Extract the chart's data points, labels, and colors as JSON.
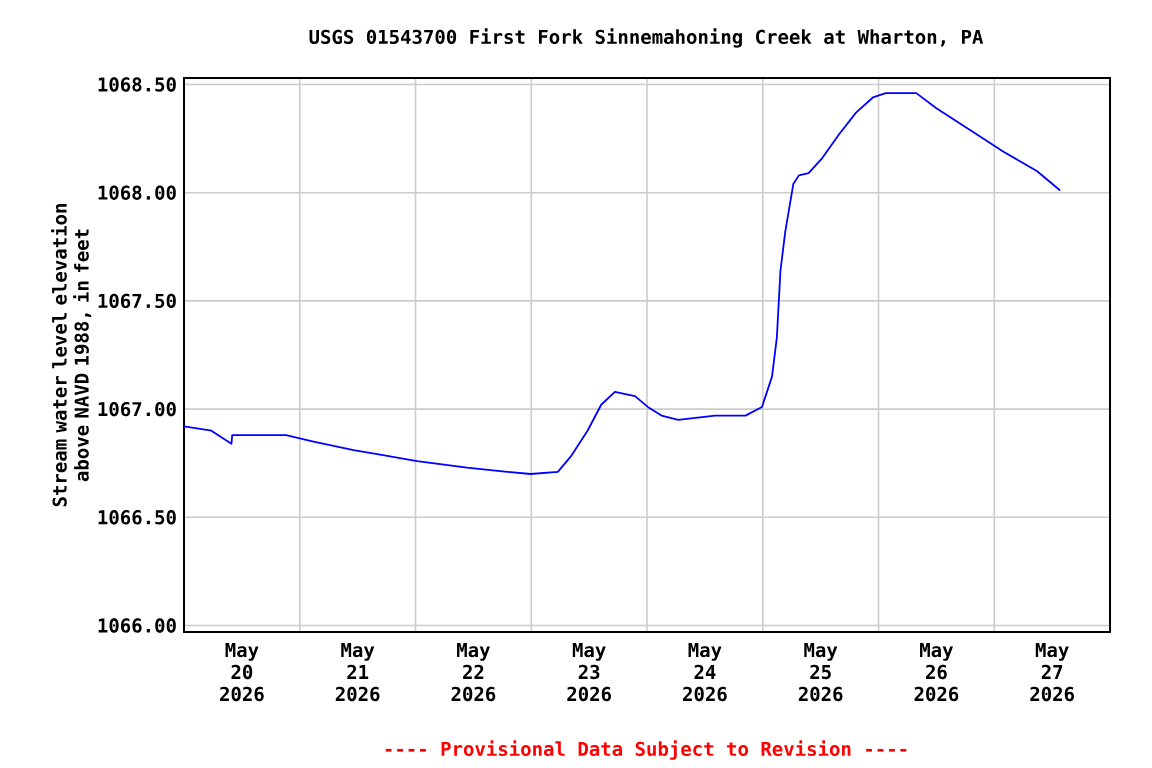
{
  "chart_data": {
    "type": "line",
    "title": "USGS 01543700 First Fork Sinnemahoning Creek at Wharton, PA",
    "ylabel": "Stream water level elevation above NAVD 1988, in feet",
    "annotations": [
      "---- Provisional Data Subject to Revision ----"
    ],
    "xlim": [
      "2026-05-20T00:00",
      "2026-05-28T00:00"
    ],
    "ylim": [
      1065.97,
      1068.53
    ],
    "xticks": [
      {
        "value": "2026-05-21T00:00",
        "label": null
      },
      {
        "value": "2026-05-22T00:00",
        "label": null
      },
      {
        "value": "2026-05-23T00:00",
        "label": null
      },
      {
        "value": "2026-05-24T00:00",
        "label": null
      },
      {
        "value": "2026-05-25T00:00",
        "label": null
      },
      {
        "value": "2026-05-26T00:00",
        "label": null
      },
      {
        "value": "2026-05-27T00:00",
        "label": null
      },
      {
        "value": "2026-05-20T12:00",
        "label": "May 20 2026"
      },
      {
        "value": "2026-05-21T12:00",
        "label": "May 21 2026"
      },
      {
        "value": "2026-05-22T12:00",
        "label": "May 22 2026"
      },
      {
        "value": "2026-05-23T12:00",
        "label": "May 23 2026"
      },
      {
        "value": "2026-05-24T12:00",
        "label": "May 24 2026"
      },
      {
        "value": "2026-05-25T12:00",
        "label": "May 25 2026"
      },
      {
        "value": "2026-05-26T12:00",
        "label": "May 26 2026"
      },
      {
        "value": "2026-05-27T12:00",
        "label": "May 27 2026"
      }
    ],
    "yticks": [
      {
        "value": 1066.0,
        "label": "1066.00"
      },
      {
        "value": 1066.5,
        "label": "1066.50"
      },
      {
        "value": 1067.0,
        "label": "1067.00"
      },
      {
        "value": 1067.5,
        "label": "1067.50"
      },
      {
        "value": 1068.0,
        "label": "1068.00"
      },
      {
        "value": 1068.5,
        "label": "1068.50"
      }
    ],
    "grid": true,
    "series": [
      {
        "color": "#0000ff",
        "x": [
          "2026-05-20T00:00",
          "2026-05-20T05:40",
          "2026-05-20T09:50",
          "2026-05-20T10:00",
          "2026-05-20T21:10",
          "2026-05-21T02:50",
          "2026-05-21T11:10",
          "2026-05-21T16:40",
          "2026-05-22T00:20",
          "2026-05-22T10:40",
          "2026-05-22T19:00",
          "2026-05-22T23:50",
          "2026-05-23T05:30",
          "2026-05-23T08:10",
          "2026-05-23T11:40",
          "2026-05-23T14:30",
          "2026-05-23T17:20",
          "2026-05-23T21:30",
          "2026-05-24T00:10",
          "2026-05-24T03:00",
          "2026-05-24T06:30",
          "2026-05-24T14:05",
          "2026-05-24T20:25",
          "2026-05-24T23:50",
          "2026-05-25T01:55",
          "2026-05-25T02:55",
          "2026-05-25T03:40",
          "2026-05-25T04:40",
          "2026-05-25T06:20",
          "2026-05-25T07:30",
          "2026-05-25T09:30",
          "2026-05-25T12:20",
          "2026-05-25T15:50",
          "2026-05-25T19:20",
          "2026-05-25T22:50",
          "2026-05-26T01:30",
          "2026-05-26T07:50",
          "2026-05-26T12:00",
          "2026-05-26T16:10",
          "2026-05-26T20:20",
          "2026-05-27T01:50",
          "2026-05-27T08:50",
          "2026-05-27T13:40"
        ],
        "values": [
          1066.92,
          1066.9,
          1066.84,
          1066.88,
          1066.88,
          1066.85,
          1066.81,
          1066.79,
          1066.76,
          1066.73,
          1066.71,
          1066.7,
          1066.71,
          1066.78,
          1066.9,
          1067.02,
          1067.08,
          1067.06,
          1067.01,
          1066.97,
          1066.95,
          1066.97,
          1066.97,
          1067.01,
          1067.15,
          1067.33,
          1067.64,
          1067.82,
          1068.04,
          1068.08,
          1068.09,
          1068.16,
          1068.27,
          1068.37,
          1068.44,
          1068.46,
          1068.46,
          1068.39,
          1068.33,
          1068.27,
          1068.19,
          1068.1,
          1068.01
        ]
      }
    ]
  }
}
